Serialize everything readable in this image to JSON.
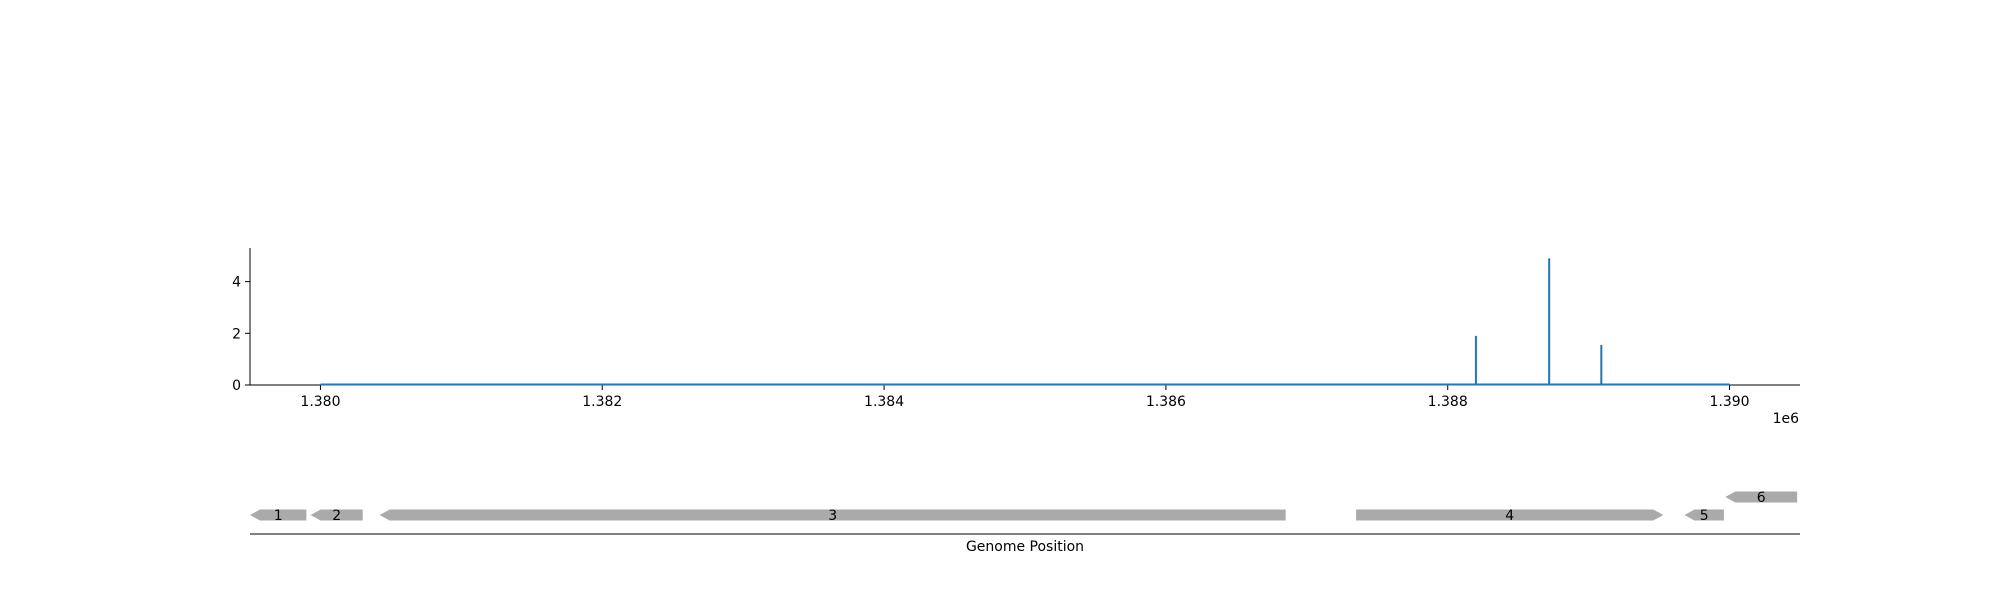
{
  "chart_data": [
    {
      "type": "line",
      "title": "",
      "xlabel": "",
      "ylabel": "",
      "xlim": [
        1379500,
        1390500
      ],
      "ylim": [
        0,
        5.3
      ],
      "x_ticks": [
        1380000,
        1382000,
        1384000,
        1386000,
        1388000,
        1390000
      ],
      "x_tick_labels": [
        "1.380",
        "1.382",
        "1.384",
        "1.386",
        "1.388",
        "1.390"
      ],
      "x_offset_label": "1e6",
      "y_ticks": [
        0,
        2,
        4
      ],
      "y_tick_labels": [
        "0",
        "2",
        "4"
      ],
      "grid": false,
      "series_color": "#1f77b4",
      "baseline": {
        "x_start": 1380000,
        "x_end": 1390000,
        "y": 0
      },
      "series": [
        {
          "x": [
            1388200,
            1388720,
            1389090
          ],
          "values": [
            1.9,
            4.9,
            1.55
          ]
        }
      ]
    },
    {
      "type": "gene-track",
      "xlabel": "Genome Position",
      "xlim": [
        1379500,
        1390500
      ],
      "feature_color": "#aaaaaa",
      "features": [
        {
          "label": "1",
          "start": 1379500,
          "end": 1379900,
          "strand": "-",
          "lane": 0
        },
        {
          "label": "2",
          "start": 1379930,
          "end": 1380300,
          "strand": "-",
          "lane": 0
        },
        {
          "label": "3",
          "start": 1380420,
          "end": 1386850,
          "strand": "-",
          "lane": 0
        },
        {
          "label": "4",
          "start": 1387350,
          "end": 1389530,
          "strand": "+",
          "lane": 0
        },
        {
          "label": "5",
          "start": 1389680,
          "end": 1389960,
          "strand": "-",
          "lane": 0
        },
        {
          "label": "6",
          "start": 1389970,
          "end": 1390480,
          "strand": "-",
          "lane": 1
        }
      ]
    }
  ]
}
